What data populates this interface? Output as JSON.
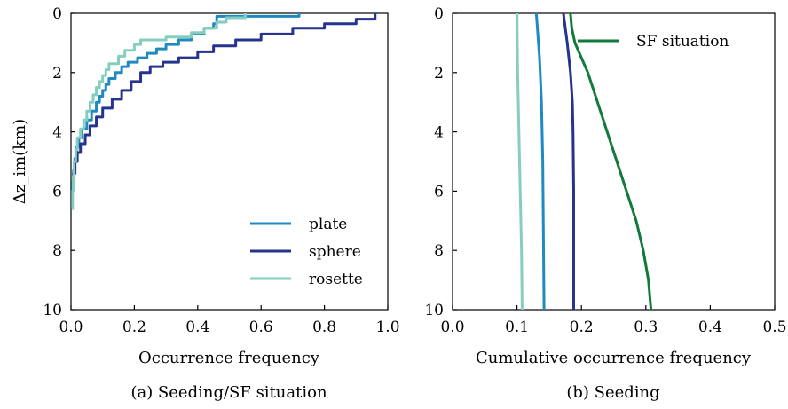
{
  "chart_data": [
    {
      "type": "line",
      "caption": "(a) Seeding/SF situation",
      "xlabel": "Occurrence frequency",
      "ylabel": "Δz_im(km)",
      "xlim": [
        0.0,
        1.0
      ],
      "ylim": [
        10,
        0
      ],
      "y_inverted": true,
      "xticks": [
        "0.0",
        "0.2",
        "0.4",
        "0.6",
        "0.8",
        "1.0"
      ],
      "yticks": [
        "0",
        "2",
        "4",
        "6",
        "8",
        "10"
      ],
      "grid": false,
      "legend_position": "lower-right",
      "series": [
        {
          "name": "plate",
          "color": "#1f8ac0",
          "points": [
            [
              0.72,
              0.0
            ],
            [
              0.72,
              0.1
            ],
            [
              0.46,
              0.1
            ],
            [
              0.45,
              0.35
            ],
            [
              0.42,
              0.5
            ],
            [
              0.38,
              0.7
            ],
            [
              0.34,
              0.9
            ],
            [
              0.3,
              1.05
            ],
            [
              0.27,
              1.2
            ],
            [
              0.24,
              1.35
            ],
            [
              0.21,
              1.5
            ],
            [
              0.18,
              1.65
            ],
            [
              0.16,
              1.8
            ],
            [
              0.14,
              2.0
            ],
            [
              0.12,
              2.2
            ],
            [
              0.11,
              2.4
            ],
            [
              0.1,
              2.6
            ],
            [
              0.09,
              2.8
            ],
            [
              0.08,
              3.0
            ],
            [
              0.065,
              3.3
            ],
            [
              0.05,
              3.6
            ],
            [
              0.035,
              3.9
            ],
            [
              0.025,
              4.2
            ],
            [
              0.018,
              4.5
            ],
            [
              0.012,
              4.9
            ],
            [
              0.008,
              5.3
            ],
            [
              0.005,
              5.7
            ],
            [
              0.003,
              6.0
            ]
          ]
        },
        {
          "name": "sphere",
          "color": "#26348f",
          "points": [
            [
              0.96,
              0.0
            ],
            [
              0.96,
              0.1
            ],
            [
              0.9,
              0.2
            ],
            [
              0.8,
              0.35
            ],
            [
              0.7,
              0.5
            ],
            [
              0.6,
              0.7
            ],
            [
              0.52,
              0.9
            ],
            [
              0.45,
              1.1
            ],
            [
              0.4,
              1.3
            ],
            [
              0.34,
              1.5
            ],
            [
              0.29,
              1.65
            ],
            [
              0.25,
              1.8
            ],
            [
              0.22,
              2.0
            ],
            [
              0.19,
              2.3
            ],
            [
              0.16,
              2.6
            ],
            [
              0.13,
              2.9
            ],
            [
              0.1,
              3.2
            ],
            [
              0.08,
              3.5
            ],
            [
              0.06,
              3.8
            ],
            [
              0.045,
              4.1
            ],
            [
              0.03,
              4.4
            ],
            [
              0.02,
              4.7
            ],
            [
              0.013,
              5.0
            ],
            [
              0.008,
              5.4
            ],
            [
              0.004,
              5.8
            ]
          ]
        },
        {
          "name": "rosette",
          "color": "#85cebf",
          "points": [
            [
              0.55,
              0.0
            ],
            [
              0.55,
              0.05
            ],
            [
              0.49,
              0.15
            ],
            [
              0.46,
              0.3
            ],
            [
              0.42,
              0.5
            ],
            [
              0.38,
              0.65
            ],
            [
              0.3,
              0.8
            ],
            [
              0.22,
              0.9
            ],
            [
              0.2,
              1.05
            ],
            [
              0.17,
              1.25
            ],
            [
              0.15,
              1.45
            ],
            [
              0.12,
              1.7
            ],
            [
              0.11,
              1.9
            ],
            [
              0.1,
              2.1
            ],
            [
              0.09,
              2.3
            ],
            [
              0.08,
              2.5
            ],
            [
              0.07,
              2.75
            ],
            [
              0.06,
              3.0
            ],
            [
              0.05,
              3.3
            ],
            [
              0.04,
              3.6
            ],
            [
              0.03,
              3.9
            ],
            [
              0.02,
              4.2
            ],
            [
              0.015,
              4.6
            ],
            [
              0.01,
              5.0
            ],
            [
              0.007,
              5.5
            ],
            [
              0.005,
              6.0
            ],
            [
              0.004,
              6.6
            ]
          ]
        }
      ]
    },
    {
      "type": "line",
      "caption": "(b) Seeding",
      "xlabel": "Cumulative occurrence frequency",
      "ylabel": "",
      "xlim": [
        0.0,
        0.5
      ],
      "ylim": [
        10,
        0
      ],
      "y_inverted": true,
      "xticks": [
        "0.0",
        "0.1",
        "0.2",
        "0.3",
        "0.4",
        "0.5"
      ],
      "yticks": [
        "0",
        "2",
        "4",
        "6",
        "8",
        "10"
      ],
      "grid": false,
      "legend_position": "top-right",
      "series": [
        {
          "name": "",
          "color": "#85cebf",
          "points": [
            [
              0.1,
              0.0
            ],
            [
              0.101,
              2.0
            ],
            [
              0.103,
              4.0
            ],
            [
              0.105,
              6.0
            ],
            [
              0.107,
              8.0
            ],
            [
              0.108,
              10.0
            ]
          ]
        },
        {
          "name": "",
          "color": "#1f8ac0",
          "points": [
            [
              0.13,
              0.0
            ],
            [
              0.135,
              1.5
            ],
            [
              0.138,
              3.0
            ],
            [
              0.14,
              5.0
            ],
            [
              0.141,
              7.5
            ],
            [
              0.142,
              10.0
            ]
          ]
        },
        {
          "name": "",
          "color": "#26348f",
          "points": [
            [
              0.172,
              0.0
            ],
            [
              0.178,
              1.0
            ],
            [
              0.183,
              2.0
            ],
            [
              0.186,
              3.0
            ],
            [
              0.187,
              4.0
            ],
            [
              0.188,
              6.0
            ],
            [
              0.188,
              10.0
            ]
          ]
        },
        {
          "name": "SF situation",
          "color": "#137a3c",
          "points": [
            [
              0.183,
              0.0
            ],
            [
              0.185,
              0.5
            ],
            [
              0.19,
              1.0
            ],
            [
              0.2,
              1.5
            ],
            [
              0.21,
              2.0
            ],
            [
              0.225,
              3.0
            ],
            [
              0.24,
              4.0
            ],
            [
              0.255,
              5.0
            ],
            [
              0.27,
              6.0
            ],
            [
              0.285,
              7.0
            ],
            [
              0.296,
              8.0
            ],
            [
              0.304,
              9.0
            ],
            [
              0.308,
              10.0
            ]
          ]
        }
      ]
    }
  ]
}
